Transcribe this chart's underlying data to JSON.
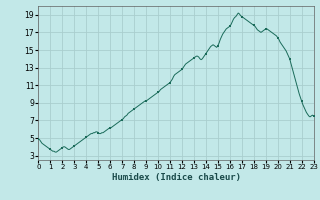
{
  "title": "",
  "xlabel": "Humidex (Indice chaleur)",
  "ylabel": "",
  "bg_color": "#c2e8e8",
  "grid_color": "#aacece",
  "line_color": "#1a6b5a",
  "marker_color": "#1a6b5a",
  "xlim": [
    0,
    23
  ],
  "ylim": [
    2.5,
    20
  ],
  "xticks": [
    0,
    1,
    2,
    3,
    4,
    5,
    6,
    7,
    8,
    9,
    10,
    11,
    12,
    13,
    14,
    15,
    16,
    17,
    18,
    19,
    20,
    21,
    22,
    23
  ],
  "yticks": [
    3,
    5,
    7,
    9,
    11,
    13,
    15,
    17,
    19
  ],
  "x": [
    0.0,
    0.1,
    0.2,
    0.3,
    0.4,
    0.5,
    0.6,
    0.7,
    0.8,
    0.9,
    1.0,
    1.1,
    1.2,
    1.3,
    1.4,
    1.5,
    1.6,
    1.7,
    1.8,
    1.9,
    2.0,
    2.1,
    2.2,
    2.3,
    2.4,
    2.5,
    2.6,
    2.7,
    2.8,
    2.9,
    3.0,
    3.1,
    3.2,
    3.3,
    3.4,
    3.5,
    3.6,
    3.7,
    3.8,
    3.9,
    4.0,
    4.1,
    4.2,
    4.3,
    4.4,
    4.5,
    4.6,
    4.7,
    4.8,
    4.9,
    5.0,
    5.1,
    5.2,
    5.3,
    5.4,
    5.5,
    5.6,
    5.7,
    5.8,
    5.9,
    6.0,
    6.1,
    6.2,
    6.3,
    6.4,
    6.5,
    6.6,
    6.7,
    6.8,
    6.9,
    7.0,
    7.1,
    7.2,
    7.3,
    7.4,
    7.5,
    7.6,
    7.7,
    7.8,
    7.9,
    8.0,
    8.1,
    8.2,
    8.3,
    8.4,
    8.5,
    8.6,
    8.7,
    8.8,
    8.9,
    9.0,
    9.1,
    9.2,
    9.3,
    9.4,
    9.5,
    9.6,
    9.7,
    9.8,
    9.9,
    10.0,
    10.1,
    10.2,
    10.3,
    10.4,
    10.5,
    10.6,
    10.7,
    10.8,
    10.9,
    11.0,
    11.1,
    11.2,
    11.3,
    11.4,
    11.5,
    11.6,
    11.7,
    11.8,
    11.9,
    12.0,
    12.1,
    12.2,
    12.3,
    12.4,
    12.5,
    12.6,
    12.7,
    12.8,
    12.9,
    13.0,
    13.1,
    13.2,
    13.3,
    13.4,
    13.5,
    13.6,
    13.7,
    13.8,
    13.9,
    14.0,
    14.1,
    14.2,
    14.3,
    14.4,
    14.5,
    14.6,
    14.7,
    14.8,
    14.9,
    15.0,
    15.1,
    15.2,
    15.3,
    15.4,
    15.5,
    15.6,
    15.7,
    15.8,
    15.9,
    16.0,
    16.1,
    16.2,
    16.3,
    16.4,
    16.5,
    16.6,
    16.7,
    16.8,
    16.9,
    17.0,
    17.1,
    17.2,
    17.3,
    17.4,
    17.5,
    17.6,
    17.7,
    17.8,
    17.9,
    18.0,
    18.1,
    18.2,
    18.3,
    18.4,
    18.5,
    18.6,
    18.7,
    18.8,
    18.9,
    19.0,
    19.1,
    19.2,
    19.3,
    19.4,
    19.5,
    19.6,
    19.7,
    19.8,
    19.9,
    20.0,
    20.1,
    20.2,
    20.3,
    20.4,
    20.5,
    20.6,
    20.7,
    20.8,
    20.9,
    21.0,
    21.1,
    21.2,
    21.3,
    21.4,
    21.5,
    21.6,
    21.7,
    21.8,
    21.9,
    22.0,
    22.1,
    22.2,
    22.3,
    22.4,
    22.5,
    22.6,
    22.7,
    22.8,
    22.9,
    23.0
  ],
  "y": [
    4.9,
    4.8,
    4.6,
    4.4,
    4.3,
    4.2,
    4.1,
    4.0,
    3.9,
    3.8,
    3.7,
    3.6,
    3.5,
    3.5,
    3.4,
    3.4,
    3.5,
    3.6,
    3.7,
    3.8,
    3.9,
    4.0,
    4.0,
    3.9,
    3.8,
    3.7,
    3.7,
    3.8,
    3.9,
    4.0,
    4.1,
    4.2,
    4.3,
    4.4,
    4.5,
    4.6,
    4.7,
    4.8,
    4.9,
    5.0,
    5.1,
    5.2,
    5.3,
    5.4,
    5.5,
    5.5,
    5.6,
    5.6,
    5.7,
    5.7,
    5.6,
    5.5,
    5.5,
    5.6,
    5.6,
    5.7,
    5.8,
    5.9,
    6.0,
    6.1,
    6.1,
    6.2,
    6.3,
    6.4,
    6.5,
    6.6,
    6.7,
    6.8,
    6.9,
    7.0,
    7.1,
    7.2,
    7.4,
    7.5,
    7.6,
    7.8,
    7.9,
    8.0,
    8.1,
    8.2,
    8.3,
    8.4,
    8.5,
    8.6,
    8.7,
    8.8,
    8.9,
    9.0,
    9.1,
    9.2,
    9.2,
    9.3,
    9.4,
    9.5,
    9.6,
    9.7,
    9.8,
    9.9,
    10.0,
    10.1,
    10.2,
    10.3,
    10.5,
    10.6,
    10.7,
    10.8,
    10.9,
    11.0,
    11.1,
    11.2,
    11.3,
    11.5,
    11.7,
    12.0,
    12.2,
    12.3,
    12.4,
    12.5,
    12.6,
    12.7,
    12.8,
    13.0,
    13.2,
    13.4,
    13.5,
    13.6,
    13.7,
    13.8,
    13.9,
    14.0,
    14.1,
    14.2,
    14.3,
    14.3,
    14.2,
    14.0,
    13.9,
    14.0,
    14.2,
    14.4,
    14.6,
    14.8,
    15.0,
    15.2,
    15.4,
    15.5,
    15.6,
    15.5,
    15.4,
    15.3,
    15.5,
    15.8,
    16.2,
    16.5,
    16.8,
    17.0,
    17.2,
    17.4,
    17.5,
    17.6,
    17.7,
    17.9,
    18.2,
    18.5,
    18.7,
    18.8,
    19.0,
    19.2,
    19.1,
    18.9,
    18.8,
    18.7,
    18.6,
    18.5,
    18.4,
    18.3,
    18.2,
    18.1,
    18.0,
    17.9,
    17.8,
    17.7,
    17.5,
    17.3,
    17.2,
    17.1,
    17.0,
    17.1,
    17.2,
    17.3,
    17.4,
    17.4,
    17.3,
    17.2,
    17.1,
    17.0,
    16.9,
    16.8,
    16.7,
    16.6,
    16.4,
    16.2,
    15.9,
    15.7,
    15.5,
    15.3,
    15.1,
    14.9,
    14.6,
    14.3,
    14.0,
    13.5,
    13.0,
    12.5,
    12.0,
    11.5,
    11.0,
    10.5,
    10.0,
    9.6,
    9.2,
    8.8,
    8.5,
    8.2,
    7.9,
    7.7,
    7.5,
    7.4,
    7.5,
    7.6,
    7.5
  ],
  "marker_x": [
    0,
    1,
    2,
    3,
    4,
    5,
    6,
    7,
    8,
    9,
    10,
    11,
    12,
    13,
    14,
    15,
    16,
    17,
    18,
    19,
    20,
    21,
    22,
    23
  ],
  "marker_y": [
    4.9,
    3.7,
    3.9,
    4.1,
    5.1,
    5.6,
    6.1,
    7.1,
    8.3,
    9.2,
    10.2,
    11.3,
    12.8,
    14.1,
    14.6,
    15.5,
    17.7,
    18.8,
    17.8,
    17.4,
    16.4,
    14.0,
    9.2,
    7.5
  ],
  "figsize": [
    3.2,
    2.0
  ],
  "dpi": 100
}
